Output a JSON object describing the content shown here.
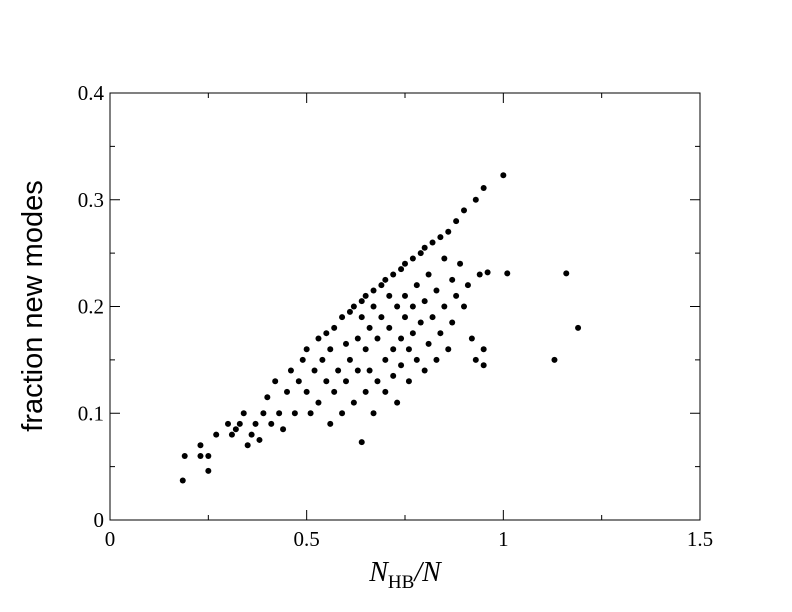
{
  "chart_data": {
    "type": "scatter",
    "xlabel": {
      "main": "N",
      "subscript": "HB",
      "suffix": "/N"
    },
    "ylabel": "fraction new modes",
    "xlim": [
      0,
      1.5
    ],
    "ylim": [
      0,
      0.4
    ],
    "xticks": [
      0,
      0.5,
      1,
      1.5
    ],
    "yticks": [
      0,
      0.1,
      0.2,
      0.3,
      0.4
    ],
    "xminor": [
      0.25,
      0.75,
      1.25
    ],
    "yminor": [
      0.05,
      0.15,
      0.25,
      0.35
    ],
    "color": "#000000",
    "x": [
      1.0,
      0.95,
      1.01,
      1.16,
      1.19,
      1.13,
      0.185,
      0.19,
      0.23,
      0.23,
      0.25,
      0.25,
      0.27,
      0.64,
      0.93,
      0.95,
      0.95,
      0.94,
      0.96,
      0.3,
      0.31,
      0.32,
      0.33,
      0.34,
      0.35,
      0.36,
      0.37,
      0.38,
      0.39,
      0.4,
      0.41,
      0.42,
      0.43,
      0.44,
      0.45,
      0.46,
      0.47,
      0.48,
      0.49,
      0.5,
      0.5,
      0.51,
      0.52,
      0.53,
      0.53,
      0.54,
      0.55,
      0.55,
      0.56,
      0.56,
      0.57,
      0.57,
      0.58,
      0.59,
      0.59,
      0.6,
      0.6,
      0.61,
      0.61,
      0.62,
      0.62,
      0.63,
      0.63,
      0.64,
      0.64,
      0.65,
      0.65,
      0.65,
      0.66,
      0.66,
      0.67,
      0.67,
      0.67,
      0.68,
      0.68,
      0.69,
      0.69,
      0.7,
      0.7,
      0.7,
      0.71,
      0.71,
      0.72,
      0.72,
      0.72,
      0.73,
      0.73,
      0.74,
      0.74,
      0.74,
      0.75,
      0.75,
      0.75,
      0.76,
      0.76,
      0.77,
      0.77,
      0.77,
      0.78,
      0.78,
      0.79,
      0.79,
      0.8,
      0.8,
      0.8,
      0.81,
      0.81,
      0.82,
      0.82,
      0.83,
      0.83,
      0.84,
      0.84,
      0.85,
      0.85,
      0.86,
      0.86,
      0.87,
      0.87,
      0.88,
      0.88,
      0.89,
      0.9,
      0.9,
      0.91,
      0.92,
      0.93
    ],
    "y": [
      0.323,
      0.311,
      0.231,
      0.231,
      0.18,
      0.15,
      0.037,
      0.06,
      0.06,
      0.07,
      0.06,
      0.046,
      0.08,
      0.073,
      0.15,
      0.16,
      0.145,
      0.23,
      0.232,
      0.09,
      0.08,
      0.085,
      0.09,
      0.1,
      0.07,
      0.08,
      0.09,
      0.075,
      0.1,
      0.115,
      0.09,
      0.13,
      0.1,
      0.085,
      0.12,
      0.14,
      0.1,
      0.13,
      0.15,
      0.16,
      0.12,
      0.1,
      0.14,
      0.17,
      0.11,
      0.15,
      0.175,
      0.13,
      0.09,
      0.16,
      0.18,
      0.12,
      0.14,
      0.19,
      0.1,
      0.165,
      0.13,
      0.195,
      0.15,
      0.2,
      0.11,
      0.17,
      0.14,
      0.205,
      0.19,
      0.21,
      0.16,
      0.12,
      0.18,
      0.14,
      0.215,
      0.2,
      0.1,
      0.17,
      0.13,
      0.22,
      0.19,
      0.225,
      0.15,
      0.12,
      0.21,
      0.18,
      0.23,
      0.16,
      0.135,
      0.2,
      0.11,
      0.235,
      0.17,
      0.145,
      0.24,
      0.19,
      0.21,
      0.16,
      0.13,
      0.245,
      0.2,
      0.175,
      0.22,
      0.15,
      0.25,
      0.185,
      0.255,
      0.205,
      0.14,
      0.23,
      0.165,
      0.26,
      0.19,
      0.215,
      0.15,
      0.265,
      0.175,
      0.245,
      0.2,
      0.27,
      0.16,
      0.225,
      0.185,
      0.28,
      0.21,
      0.24,
      0.29,
      0.2,
      0.22,
      0.17,
      0.3
    ]
  }
}
